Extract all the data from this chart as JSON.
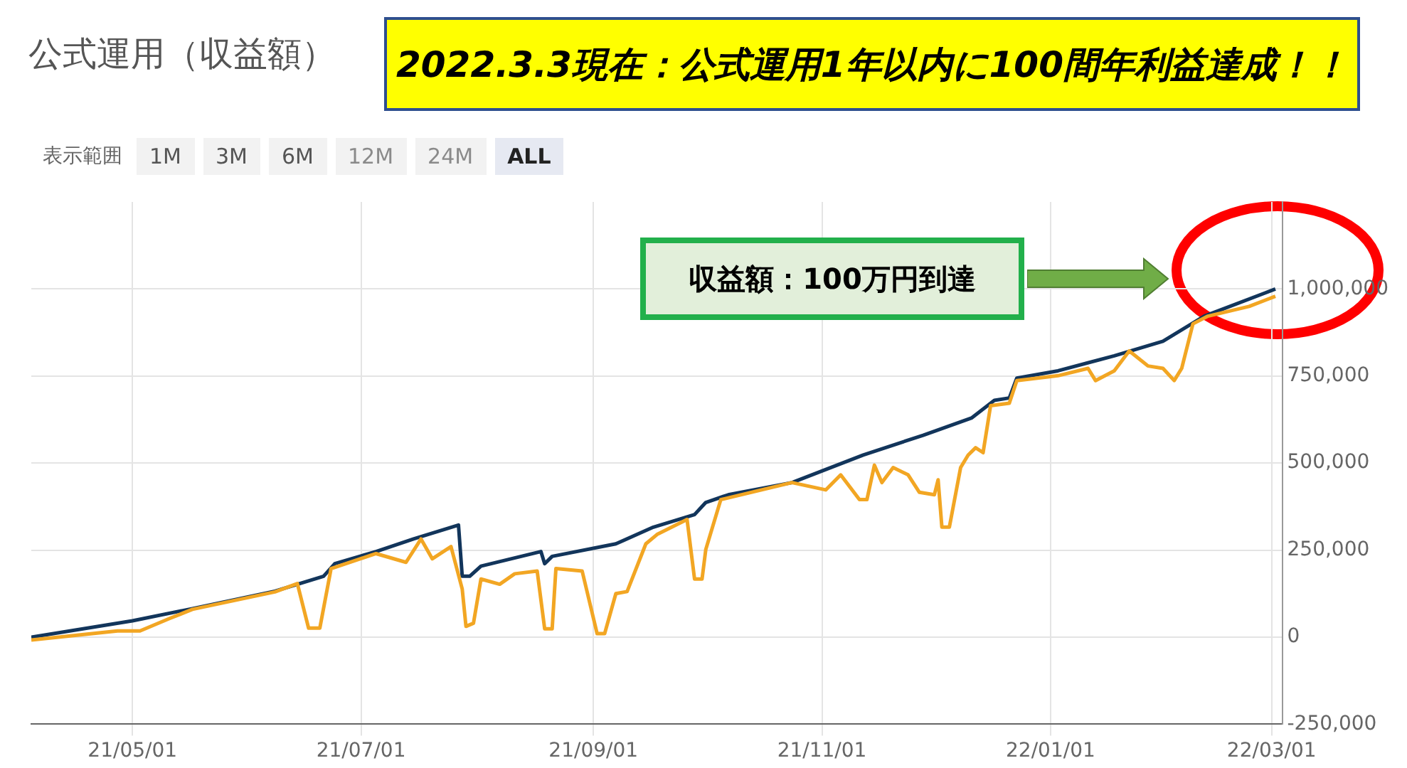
{
  "chart_data": {
    "type": "line",
    "title": "公式運用（収益額）",
    "annotations": [
      "2022.3.3現在：公式運用1年以内に100間年利益達成！！",
      "収益額：100万円到達",
      "表示範囲",
      "1M",
      "3M",
      "6M",
      "12M",
      "24M",
      "ALL"
    ],
    "xlim": [
      "2021-04-04",
      "2022-03-04"
    ],
    "xticks": [
      {
        "value": "2021-05-01",
        "label": "21/05/01"
      },
      {
        "value": "2021-07-01",
        "label": "21/07/01"
      },
      {
        "value": "2021-09-01",
        "label": "21/09/01"
      },
      {
        "value": "2021-11-01",
        "label": "21/11/01"
      },
      {
        "value": "2022-01-01",
        "label": "22/01/01"
      },
      {
        "value": "2022-03-01",
        "label": "22/03/01"
      }
    ],
    "ylim": [
      -250000,
      1250000
    ],
    "yticks": [
      {
        "value": -250000,
        "label": "-250,000"
      },
      {
        "value": 0,
        "label": "0"
      },
      {
        "value": 250000,
        "label": "250,000"
      },
      {
        "value": 500000,
        "label": "500,000"
      },
      {
        "value": 750000,
        "label": "750,000"
      },
      {
        "value": 1000000,
        "label": "1,000,000"
      }
    ],
    "grid": true,
    "legend": false,
    "marker": "none",
    "line_style": "solid",
    "series": [
      {
        "color": "#f2a623",
        "x": [
          "2021-04-04",
          "2021-04-27",
          "2021-05-03",
          "2021-05-11",
          "2021-05-17",
          "2021-06-08",
          "2021-06-14",
          "2021-06-17",
          "2021-06-20",
          "2021-06-23",
          "2021-07-05",
          "2021-07-13",
          "2021-07-17",
          "2021-07-20",
          "2021-07-25",
          "2021-07-28",
          "2021-07-29",
          "2021-07-31",
          "2021-08-02",
          "2021-08-07",
          "2021-08-11",
          "2021-08-17",
          "2021-08-19",
          "2021-08-21",
          "2021-08-22",
          "2021-08-29",
          "2021-09-02",
          "2021-09-04",
          "2021-09-07",
          "2021-09-10",
          "2021-09-15",
          "2021-09-18",
          "2021-09-26",
          "2021-09-28",
          "2021-09-30",
          "2021-10-01",
          "2021-10-05",
          "2021-10-24",
          "2021-11-02",
          "2021-11-06",
          "2021-11-11",
          "2021-11-13",
          "2021-11-15",
          "2021-11-17",
          "2021-11-20",
          "2021-11-24",
          "2021-11-27",
          "2021-12-01",
          "2021-12-02",
          "2021-12-03",
          "2021-12-05",
          "2021-12-08",
          "2021-12-10",
          "2021-12-12",
          "2021-12-14",
          "2021-12-16",
          "2021-12-21",
          "2021-12-23",
          "2022-01-03",
          "2022-01-11",
          "2022-01-13",
          "2022-01-18",
          "2022-01-22",
          "2022-01-27",
          "2022-01-31",
          "2022-02-03",
          "2022-02-05",
          "2022-02-08",
          "2022-02-12",
          "2022-02-23",
          "2022-03-02"
        ],
        "values": [
          -8000,
          18000,
          18000,
          54000,
          80000,
          130000,
          154000,
          26000,
          26000,
          197000,
          240000,
          215000,
          282000,
          225000,
          260000,
          138000,
          31000,
          40000,
          167000,
          152000,
          182000,
          190000,
          24000,
          24000,
          197000,
          190000,
          10000,
          10000,
          125000,
          131000,
          268000,
          295000,
          338000,
          167000,
          167000,
          252000,
          395000,
          444000,
          423000,
          466000,
          395000,
          395000,
          494000,
          444000,
          487000,
          466000,
          416000,
          409000,
          452000,
          316000,
          316000,
          487000,
          523000,
          544000,
          530000,
          665000,
          672000,
          737000,
          751000,
          772000,
          737000,
          765000,
          822000,
          779000,
          772000,
          737000,
          772000,
          900000,
          922000,
          950000,
          979000
        ]
      },
      {
        "color": "#12355b",
        "x": [
          "2021-04-04",
          "2021-05-01",
          "2021-05-17",
          "2021-06-08",
          "2021-06-21",
          "2021-06-24",
          "2021-07-05",
          "2021-07-15",
          "2021-07-27",
          "2021-07-28",
          "2021-07-30",
          "2021-08-02",
          "2021-08-18",
          "2021-08-19",
          "2021-08-21",
          "2021-09-07",
          "2021-09-17",
          "2021-09-28",
          "2021-10-01",
          "2021-10-07",
          "2021-10-24",
          "2021-11-12",
          "2021-11-28",
          "2021-12-11",
          "2021-12-17",
          "2021-12-21",
          "2021-12-23",
          "2022-01-03",
          "2022-01-18",
          "2022-01-31",
          "2022-02-11",
          "2022-03-02"
        ],
        "values": [
          0,
          47000,
          82000,
          132000,
          175000,
          211000,
          246000,
          282000,
          322000,
          175000,
          175000,
          204000,
          246000,
          211000,
          232000,
          268000,
          316000,
          352000,
          387000,
          409000,
          444000,
          523000,
          580000,
          630000,
          680000,
          687000,
          744000,
          765000,
          808000,
          850000,
          922000,
          1000000
        ]
      }
    ]
  }
}
